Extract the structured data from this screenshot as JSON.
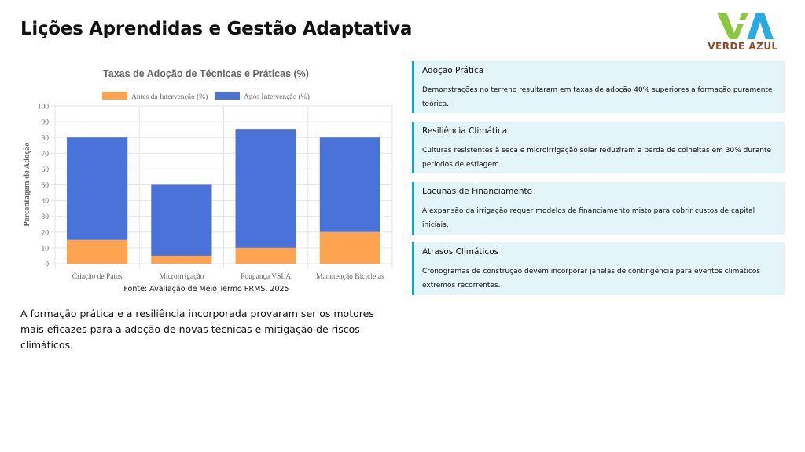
{
  "page": {
    "title": "Lições Aprendidas e Gestão Adaptativa"
  },
  "logo": {
    "text": "VERDE AZUL",
    "colors": {
      "green": "#8dc63f",
      "blue": "#29abe2",
      "brown": "#8a4a2a"
    }
  },
  "chart_data": {
    "type": "bar",
    "stacked": true,
    "title": "Taxas de Adoção de Técnicas e Práticas (%)",
    "ylabel": "Percentagem de Adoção",
    "xlabel": "",
    "ylim": [
      0,
      100
    ],
    "yticks": [
      0,
      10,
      20,
      30,
      40,
      50,
      60,
      70,
      80,
      90,
      100
    ],
    "grid": true,
    "legend": "top",
    "categories": [
      "Criação de Patos",
      "Microirrigação",
      "Poupança VSLA",
      "Manutenção Bicicletas"
    ],
    "series": [
      {
        "name": "Antes da Intervenção (%)",
        "values": [
          15,
          5,
          10,
          20
        ],
        "color": "#fea451"
      },
      {
        "name": "Após Intervenção (%)",
        "values": [
          80,
          50,
          85,
          80
        ],
        "color": "#4a72d9"
      }
    ]
  },
  "source": "Fonte: Avaliação de Meio Termo PRMS, 2025",
  "summary": "A formação prática e a resiliência incorporada provaram ser os motores mais eficazes para a adoção de novas técnicas e mitigação de riscos climáticos.",
  "cards": [
    {
      "title": "Adoção Prática",
      "text": "Demonstrações no terreno resultaram em taxas de adoção 40% superiores à formação puramente teórica."
    },
    {
      "title": "Resiliência Climática",
      "text": "Culturas resistentes à seca e microirrigação solar reduziram a perda de colheitas em 30% durante períodos de estiagem."
    },
    {
      "title": "Lacunas de Financiamento",
      "text": "A expansão da irrigação requer modelos de financiamento misto para cobrir custos de capital iniciais."
    },
    {
      "title": "Atrasos Climáticos",
      "text": "Cronogramas de construção devem incorporar janelas de contingência para eventos climáticos extremos recorrentes."
    }
  ]
}
